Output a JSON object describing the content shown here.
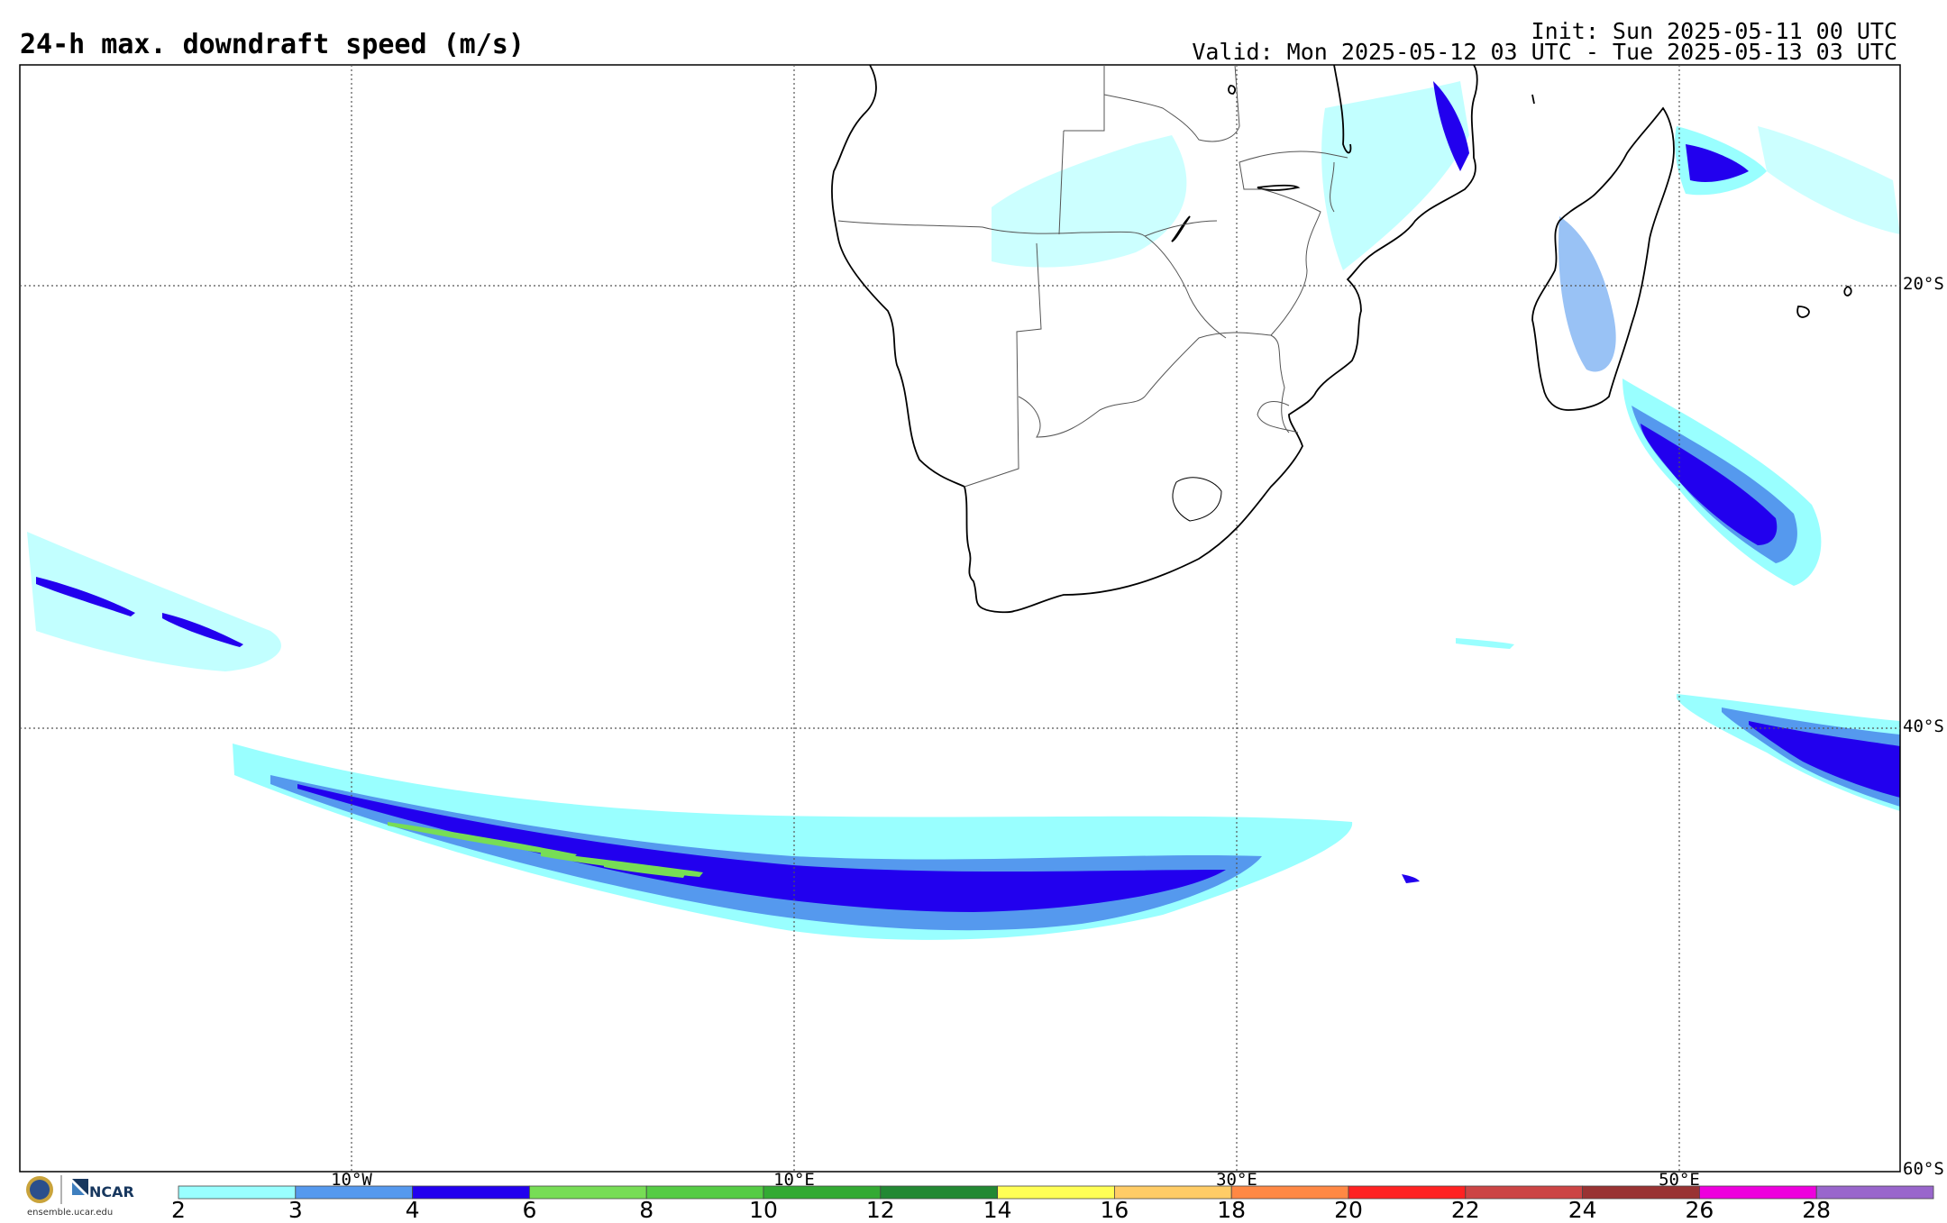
{
  "header": {
    "title": "24-h max. downdraft speed (m/s)",
    "init": "Init: Sun 2025-05-11 00 UTC",
    "valid": "Valid: Mon 2025-05-12 03 UTC - Tue 2025-05-13 03 UTC"
  },
  "axes": {
    "lat_labels": [
      "20°S",
      "40°S",
      "60°S"
    ],
    "lon_labels": [
      "10°W",
      "10°E",
      "30°E",
      "50°E"
    ]
  },
  "colorbar": {
    "ticks": [
      "2",
      "3",
      "4",
      "6",
      "8",
      "10",
      "12",
      "14",
      "16",
      "18",
      "20",
      "22",
      "24",
      "26",
      "28"
    ],
    "colors": [
      "#99ffff",
      "#5599ee",
      "#2200ee",
      "#77dd55",
      "#55cc44",
      "#33aa33",
      "#228833",
      "#ffff55",
      "#ffcc66",
      "#ff8844",
      "#ff2222",
      "#cc4444",
      "#993333",
      "#ee00dd",
      "#9966cc"
    ]
  },
  "footer": {
    "logo_text": "NCAR",
    "site": "ensemble.ucar.edu"
  }
}
